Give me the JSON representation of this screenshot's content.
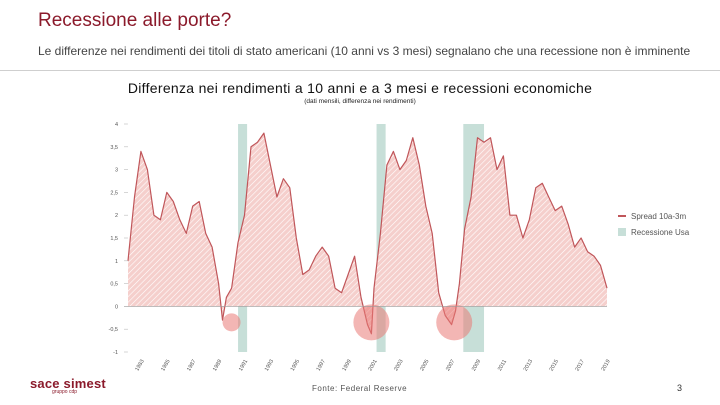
{
  "header": {
    "title": "Recessione alle porte?",
    "subtitle": "Le differenze nei rendimenti dei titoli di stato americani (10 anni vs 3 mesi) segnalano che una recessione non è imminente"
  },
  "footer": {
    "logo_main": "sace simest",
    "logo_sub": "gruppo cdp",
    "source": "Fonte: Federal Reserve",
    "page_number": "3"
  },
  "colors": {
    "accent": "#8b1a2b",
    "series": "#c0565a",
    "fill": "#f3c6c3",
    "recession": "#c7dfd8",
    "circle": "#e97a77"
  },
  "chart_data": {
    "type": "area",
    "title": "Differenza nei rendimenti a 10 anni e a 3 mesi e recessioni economiche",
    "subtitle": "(dati mensili, differenza nei rendimenti)",
    "ylim": [
      -1,
      4
    ],
    "yticks": [
      -1,
      -0.5,
      0,
      0.5,
      1,
      1.5,
      2,
      2.5,
      3,
      3.5,
      4
    ],
    "ytick_labels": [
      "-1",
      "-0,5",
      "0",
      "0,5",
      "1",
      "1,5",
      "2",
      "2,5",
      "3",
      "3,5",
      "4"
    ],
    "xlim": [
      1982,
      2019
    ],
    "xtick_labels": [
      "1983",
      "1985",
      "1987",
      "1989",
      "1991",
      "1993",
      "1995",
      "1997",
      "1999",
      "2001",
      "2003",
      "2005",
      "2007",
      "2009",
      "2011",
      "2013",
      "2015",
      "2017",
      "2019"
    ],
    "legend": [
      "Spread 10a-3m",
      "Recessione Usa"
    ],
    "legend_position": "right",
    "recessions": [
      [
        1990.5,
        1991.2
      ],
      [
        2001.2,
        2001.9
      ],
      [
        2007.9,
        2009.5
      ]
    ],
    "highlight_inversions": [
      1990.0,
      2000.8,
      2007.2
    ],
    "series": [
      {
        "name": "Spread 10a-3m",
        "x": [
          1982.0,
          1982.5,
          1983.0,
          1983.5,
          1984.0,
          1984.5,
          1985.0,
          1985.5,
          1986.0,
          1986.5,
          1987.0,
          1987.5,
          1988.0,
          1988.5,
          1989.0,
          1989.3,
          1989.6,
          1990.0,
          1990.5,
          1991.0,
          1991.5,
          1992.0,
          1992.5,
          1993.0,
          1993.5,
          1994.0,
          1994.5,
          1995.0,
          1995.5,
          1996.0,
          1996.5,
          1997.0,
          1997.5,
          1998.0,
          1998.5,
          1999.0,
          1999.5,
          2000.0,
          2000.5,
          2000.8,
          2001.0,
          2001.5,
          2002.0,
          2002.5,
          2003.0,
          2003.5,
          2004.0,
          2004.5,
          2005.0,
          2005.5,
          2006.0,
          2006.5,
          2007.0,
          2007.3,
          2007.6,
          2008.0,
          2008.5,
          2009.0,
          2009.5,
          2010.0,
          2010.5,
          2011.0,
          2011.5,
          2012.0,
          2012.5,
          2013.0,
          2013.5,
          2014.0,
          2014.5,
          2015.0,
          2015.5,
          2016.0,
          2016.5,
          2017.0,
          2017.5,
          2018.0,
          2018.5,
          2019.0
        ],
        "values": [
          1.0,
          2.4,
          3.4,
          3.0,
          2.0,
          1.9,
          2.5,
          2.3,
          1.9,
          1.6,
          2.2,
          2.3,
          1.6,
          1.3,
          0.5,
          -0.3,
          0.2,
          0.4,
          1.4,
          2.0,
          3.5,
          3.6,
          3.8,
          3.1,
          2.4,
          2.8,
          2.6,
          1.5,
          0.7,
          0.8,
          1.1,
          1.3,
          1.1,
          0.4,
          0.3,
          0.7,
          1.1,
          0.2,
          -0.4,
          -0.6,
          0.4,
          1.6,
          3.1,
          3.4,
          3.0,
          3.2,
          3.7,
          3.1,
          2.2,
          1.6,
          0.3,
          -0.2,
          -0.4,
          -0.1,
          0.5,
          1.7,
          2.4,
          3.7,
          3.6,
          3.7,
          3.0,
          3.3,
          2.0,
          2.0,
          1.5,
          1.9,
          2.6,
          2.7,
          2.4,
          2.1,
          2.2,
          1.8,
          1.3,
          1.5,
          1.2,
          1.1,
          0.9,
          0.4
        ]
      }
    ]
  }
}
